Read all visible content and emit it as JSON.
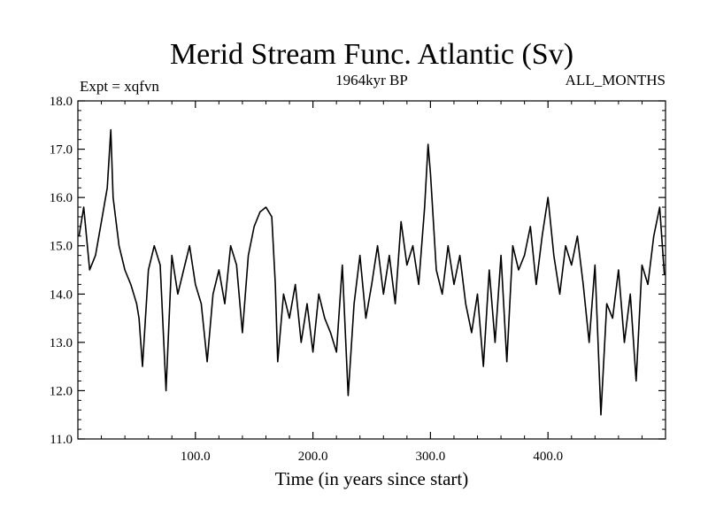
{
  "chart_data": {
    "type": "line",
    "title": "Merid Stream Func. Atlantic (Sv)",
    "subtitle_left": "Expt = xqfvn",
    "subtitle_center": "1964kyr BP",
    "subtitle_right": "ALL_MONTHS",
    "xlabel": "Time (in years since start)",
    "ylabel": "",
    "xlim": [
      0,
      500
    ],
    "ylim": [
      11.0,
      18.0
    ],
    "xticks": [
      100,
      200,
      300,
      400
    ],
    "xtick_labels": [
      "100.0",
      "200.0",
      "300.0",
      "400.0"
    ],
    "yticks": [
      11,
      12,
      13,
      14,
      15,
      16,
      17,
      18
    ],
    "ytick_labels": [
      "11.0",
      "12.0",
      "13.0",
      "14.0",
      "15.0",
      "16.0",
      "17.0",
      "18.0"
    ],
    "line_color": "#000000",
    "series": [
      {
        "name": "Merid Stream Func. Atlantic",
        "x": [
          1,
          5,
          10,
          15,
          20,
          25,
          28,
          30,
          35,
          40,
          45,
          50,
          52,
          55,
          60,
          65,
          70,
          75,
          80,
          85,
          90,
          95,
          100,
          105,
          110,
          115,
          120,
          125,
          130,
          135,
          140,
          145,
          150,
          155,
          160,
          165,
          168,
          170,
          175,
          180,
          185,
          190,
          195,
          200,
          205,
          210,
          215,
          220,
          225,
          230,
          235,
          240,
          245,
          250,
          255,
          260,
          265,
          270,
          275,
          280,
          285,
          290,
          295,
          298,
          300,
          305,
          310,
          315,
          320,
          325,
          330,
          335,
          340,
          345,
          350,
          355,
          360,
          365,
          370,
          375,
          380,
          385,
          390,
          395,
          400,
          405,
          410,
          415,
          420,
          425,
          430,
          435,
          440,
          445,
          450,
          455,
          460,
          465,
          470,
          475,
          480,
          485,
          490,
          495,
          499
        ],
        "y": [
          15.2,
          15.8,
          14.5,
          14.8,
          15.5,
          16.2,
          17.4,
          16.0,
          15.0,
          14.5,
          14.2,
          13.8,
          13.5,
          12.5,
          14.5,
          15.0,
          14.6,
          12.0,
          14.8,
          14.0,
          14.5,
          15.0,
          14.2,
          13.8,
          12.6,
          14.0,
          14.5,
          13.8,
          15.0,
          14.6,
          13.2,
          14.8,
          15.4,
          15.7,
          15.8,
          15.6,
          14.2,
          12.6,
          14.0,
          13.5,
          14.2,
          13.0,
          13.8,
          12.8,
          14.0,
          13.5,
          13.2,
          12.8,
          14.6,
          11.9,
          13.8,
          14.8,
          13.5,
          14.2,
          15.0,
          14.0,
          14.8,
          13.8,
          15.5,
          14.6,
          15.0,
          14.2,
          15.8,
          17.1,
          16.5,
          14.5,
          14.0,
          15.0,
          14.2,
          14.8,
          13.8,
          13.2,
          14.0,
          12.5,
          14.5,
          13.0,
          14.8,
          12.6,
          15.0,
          14.5,
          14.8,
          15.4,
          14.2,
          15.2,
          16.0,
          14.8,
          14.0,
          15.0,
          14.6,
          15.2,
          14.2,
          13.0,
          14.6,
          11.5,
          13.8,
          13.5,
          14.5,
          13.0,
          14.0,
          12.2,
          14.6,
          14.2,
          15.2,
          15.8,
          14.4
        ]
      }
    ]
  }
}
